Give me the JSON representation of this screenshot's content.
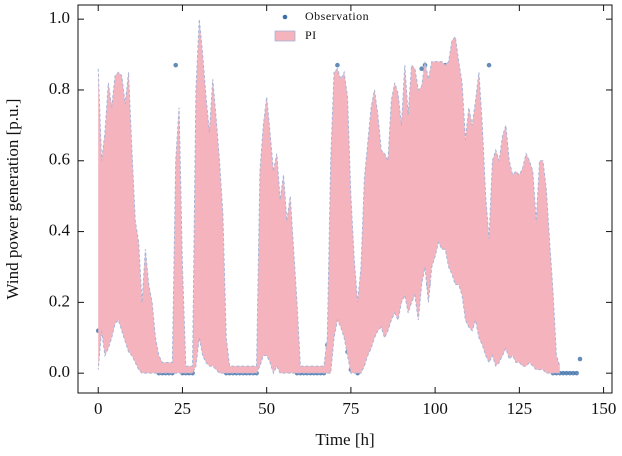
{
  "chart_data": {
    "type": "scatter-band",
    "xlabel": "Time [h]",
    "ylabel": "Wind power generation [p.u.]",
    "xlim": [
      -6,
      152.5
    ],
    "ylim": [
      -0.056,
      1.04
    ],
    "xticks": [
      0,
      25,
      50,
      75,
      100,
      125,
      150
    ],
    "yticks": [
      {
        "value": 0,
        "label": "0.0"
      },
      0.2,
      0.4,
      0.6,
      0.8,
      {
        "value": 1,
        "label": "1.0"
      }
    ],
    "legend": "upper center",
    "x": [
      0,
      1,
      2,
      3,
      4,
      5,
      6,
      7,
      8,
      9,
      10,
      11,
      12,
      13,
      14,
      15,
      16,
      17,
      18,
      19,
      20,
      21,
      22,
      23,
      24,
      25,
      26,
      27,
      28,
      29,
      30,
      31,
      32,
      33,
      34,
      35,
      36,
      37,
      38,
      39,
      40,
      41,
      42,
      43,
      44,
      45,
      46,
      47,
      48,
      49,
      50,
      51,
      52,
      53,
      54,
      55,
      56,
      57,
      58,
      59,
      60,
      61,
      62,
      63,
      64,
      65,
      66,
      67,
      68,
      69,
      70,
      71,
      72,
      73,
      74,
      75,
      76,
      77,
      78,
      79,
      80,
      81,
      82,
      83,
      84,
      85,
      86,
      87,
      88,
      89,
      90,
      91,
      92,
      93,
      94,
      95,
      96,
      97,
      98,
      99,
      100,
      101,
      102,
      103,
      104,
      105,
      106,
      107,
      108,
      109,
      110,
      111,
      112,
      113,
      114,
      115,
      116,
      117,
      118,
      119,
      120,
      121,
      122,
      123,
      124,
      125,
      126,
      127,
      128,
      129,
      130,
      131,
      132,
      133,
      134,
      135,
      136,
      137,
      138,
      139,
      140,
      141,
      142,
      143
    ],
    "series": [
      {
        "name": "Observation",
        "color": "#3f6fa8",
        "values": [
          0.12,
          0.15,
          0.27,
          0.55,
          0.32,
          0.55,
          0.35,
          0.56,
          0.34,
          0.44,
          0.31,
          0.2,
          0.13,
          0.08,
          0.08,
          0.07,
          0.05,
          0.02,
          0,
          0,
          0,
          0,
          0,
          0.87,
          0.08,
          0,
          0,
          0,
          0,
          0.1,
          0.6,
          0.19,
          0.14,
          0.11,
          0.38,
          0.11,
          0.19,
          0.03,
          0,
          0,
          0,
          0,
          0,
          0,
          0,
          0,
          0,
          0,
          0.12,
          0.31,
          0.2,
          0.1,
          0.04,
          0.2,
          0.03,
          0.09,
          0.12,
          0.14,
          0.02,
          0,
          0,
          0,
          0,
          0,
          0,
          0,
          0,
          0,
          0.08,
          0.1,
          0.23,
          0.87,
          0.31,
          0.37,
          0.06,
          0.01,
          0.02,
          0,
          0.03,
          0.08,
          0.19,
          0.29,
          0.41,
          0.42,
          0.44,
          0.44,
          0.37,
          0.49,
          0.45,
          0.41,
          0.55,
          0.59,
          0.37,
          0.6,
          0.62,
          0.28,
          0.86,
          0.87,
          0.25,
          0.75,
          0.8,
          0.87,
          0.87,
          0.87,
          0.72,
          0.7,
          0.57,
          0.64,
          0.6,
          0.46,
          0.4,
          0.41,
          0.48,
          0.28,
          0.3,
          0.32,
          0.87,
          0.18,
          0.05,
          0.2,
          0.35,
          0.45,
          0.2,
          0.37,
          0.16,
          0.21,
          0.16,
          0.13,
          0.3,
          0.11,
          0.19,
          0.18,
          0.11,
          0.05,
          0.03,
          0,
          0,
          0,
          0,
          0,
          0,
          0,
          0,
          0.04
        ]
      },
      {
        "name": "PI",
        "color": "#f4b3bd",
        "edge_color": "#a9b5d8",
        "lower": [
          0.01,
          0.12,
          0.05,
          0.07,
          0.1,
          0.14,
          0.15,
          0.12,
          0.09,
          0.06,
          0.05,
          0.03,
          0.01,
          0,
          0,
          0,
          0,
          0,
          0,
          0,
          0,
          0,
          0,
          0,
          0,
          0,
          0,
          0,
          0,
          0.02,
          0.1,
          0.05,
          0.03,
          0.02,
          0.02,
          0.01,
          0,
          0,
          0,
          0,
          0,
          0,
          0,
          0,
          0,
          0,
          0,
          0,
          0.02,
          0.05,
          0.05,
          0.03,
          0,
          0.02,
          0,
          0,
          0,
          0,
          0,
          0,
          0,
          0,
          0,
          0,
          0,
          0,
          0,
          0,
          0,
          0,
          0.1,
          0.15,
          0.13,
          0.1,
          0.05,
          0,
          0,
          0,
          0,
          0.02,
          0.05,
          0.07,
          0.1,
          0.12,
          0.13,
          0.1,
          0.12,
          0.15,
          0.17,
          0.15,
          0.2,
          0.22,
          0.17,
          0.2,
          0.22,
          0.15,
          0.25,
          0.3,
          0.2,
          0.3,
          0.33,
          0.37,
          0.35,
          0.35,
          0.3,
          0.28,
          0.25,
          0.25,
          0.22,
          0.15,
          0.13,
          0.12,
          0.15,
          0.1,
          0.08,
          0.05,
          0.03,
          0.05,
          0.02,
          0.03,
          0.05,
          0.07,
          0.04,
          0.05,
          0.03,
          0.03,
          0.02,
          0.02,
          0.03,
          0.02,
          0.01,
          0.01,
          0.01,
          0,
          0,
          0,
          0,
          0,
          null,
          null,
          null,
          null,
          null,
          null
        ],
        "upper": [
          0.86,
          0.6,
          0.68,
          0.82,
          0.75,
          0.84,
          0.85,
          0.84,
          0.76,
          0.85,
          0.63,
          0.43,
          0.37,
          0.2,
          0.35,
          0.25,
          0.2,
          0.1,
          0.05,
          0.03,
          0.03,
          0.03,
          0.03,
          0.6,
          0.75,
          0.3,
          0.02,
          0.02,
          0.02,
          0.8,
          1.0,
          0.9,
          0.78,
          0.68,
          0.83,
          0.72,
          0.6,
          0.45,
          0.1,
          0.02,
          0.02,
          0.02,
          0.02,
          0.02,
          0.02,
          0.02,
          0.02,
          0.02,
          0.57,
          0.7,
          0.78,
          0.68,
          0.57,
          0.62,
          0.49,
          0.56,
          0.43,
          0.5,
          0.35,
          0.2,
          0.02,
          0.02,
          0.02,
          0.02,
          0.02,
          0.02,
          0.02,
          0.02,
          0.1,
          0.6,
          0.85,
          0.86,
          0.83,
          0.85,
          0.78,
          0.5,
          0.32,
          0.2,
          0.3,
          0.55,
          0.65,
          0.75,
          0.8,
          0.73,
          0.63,
          0.62,
          0.6,
          0.77,
          0.82,
          0.79,
          0.7,
          0.87,
          0.73,
          0.87,
          0.86,
          0.8,
          0.81,
          0.88,
          0.83,
          0.88,
          0.88,
          0.88,
          0.88,
          0.87,
          0.88,
          0.94,
          0.95,
          0.88,
          0.82,
          0.66,
          0.75,
          0.7,
          0.77,
          0.85,
          0.7,
          0.5,
          0.38,
          0.6,
          0.63,
          0.6,
          0.67,
          0.7,
          0.6,
          0.56,
          0.57,
          0.56,
          0.58,
          0.62,
          0.6,
          0.57,
          0.43,
          0.6,
          0.6,
          0.52,
          0.37,
          0.23,
          0.05,
          0.02,
          null,
          null,
          null,
          null,
          null,
          null
        ]
      }
    ]
  }
}
